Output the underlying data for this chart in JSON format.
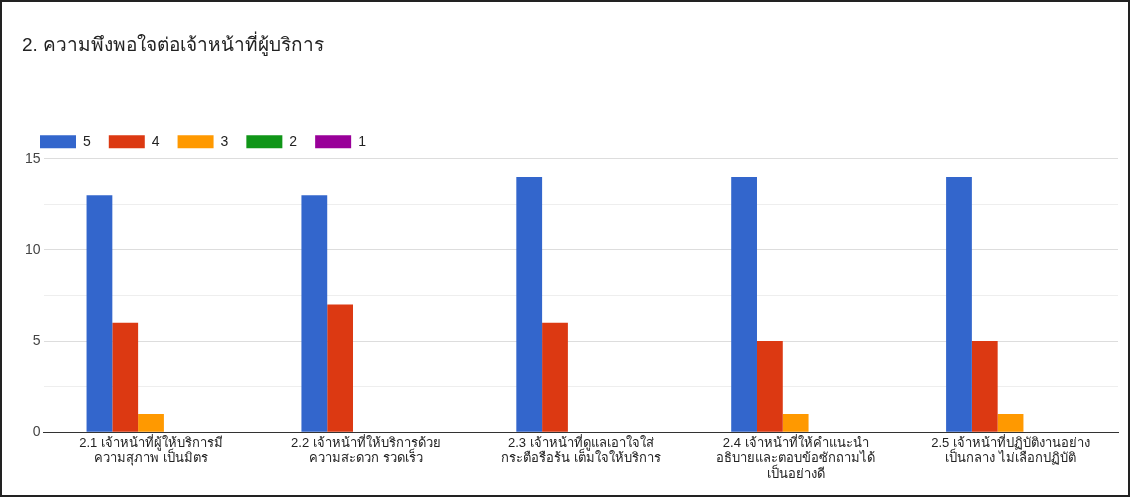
{
  "chart_data": {
    "type": "bar",
    "title": "2. ความพึงพอใจต่อเจ้าหน้าที่ผู้บริการ",
    "categories": [
      "2.1 เจ้าหน้าที่ผู้ให้บริการมี\nความสุภาพ เป็นมิตร",
      "2.2 เจ้าหน้าที่ให้บริการด้วย\nความสะดวก รวดเร็ว",
      "2.3 เจ้าหน้าที่ดูแลเอาใจใส่\nกระตือรือร้น เต็มใจให้บริการ",
      "2.4 เจ้าหน้าที่ให้คำแนะนำ\nอธิบายและตอบข้อซักถามได้\nเป็นอย่างดี",
      "2.5 เจ้าหน้าที่ปฏิบัติงานอย่าง\nเป็นกลาง ไม่เลือกปฏิบัติ"
    ],
    "series": [
      {
        "name": "5",
        "color": "#3366cc",
        "values": [
          13,
          13,
          14,
          14,
          14
        ]
      },
      {
        "name": "4",
        "color": "#dc3912",
        "values": [
          6,
          7,
          6,
          5,
          5
        ]
      },
      {
        "name": "3",
        "color": "#ff9900",
        "values": [
          1,
          0,
          0,
          1,
          1
        ]
      },
      {
        "name": "2",
        "color": "#109618",
        "values": [
          0,
          0,
          0,
          0,
          0
        ]
      },
      {
        "name": "1",
        "color": "#990099",
        "values": [
          0,
          0,
          0,
          0,
          0
        ]
      }
    ],
    "ylim": [
      0,
      15
    ],
    "yticks": [
      0,
      {
        "value": 2.5,
        "label": null
      },
      5,
      {
        "value": 7.5,
        "label": null
      },
      10,
      {
        "value": 12.5,
        "label": null
      },
      15
    ],
    "grid": "y",
    "legend": "top left"
  }
}
